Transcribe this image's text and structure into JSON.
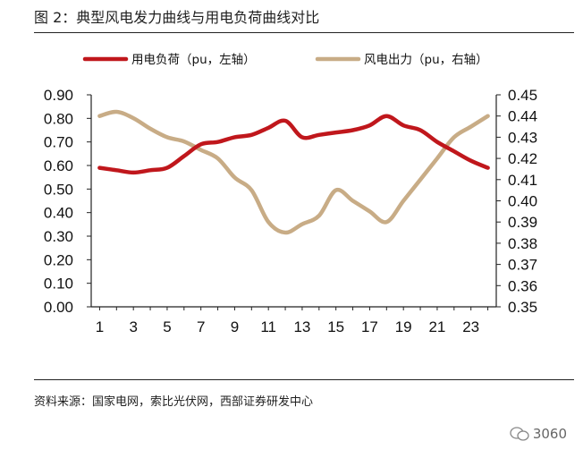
{
  "figure_title": "图 2：典型风电发力曲线与用电负荷曲线对比",
  "source_note": "资料来源：国家电网，索比光伏网，西部证券研发中心",
  "watermark": "3060",
  "colors": {
    "load": "#c0171c",
    "wind": "#c8ac86",
    "axis": "#222222"
  },
  "chart_data": {
    "type": "line",
    "title": "",
    "x": [
      1,
      2,
      3,
      4,
      5,
      6,
      7,
      8,
      9,
      10,
      11,
      12,
      13,
      14,
      15,
      16,
      17,
      18,
      19,
      20,
      21,
      22,
      23,
      24
    ],
    "x_ticks": [
      "1",
      "3",
      "5",
      "7",
      "9",
      "11",
      "13",
      "15",
      "17",
      "19",
      "21",
      "23"
    ],
    "xlim": [
      0.5,
      24.5
    ],
    "y_left": {
      "lim": [
        0,
        0.9
      ],
      "ticks": [
        "0.00",
        "0.10",
        "0.20",
        "0.30",
        "0.40",
        "0.50",
        "0.60",
        "0.70",
        "0.80",
        "0.90"
      ]
    },
    "y_right": {
      "lim": [
        0.35,
        0.45
      ],
      "ticks": [
        "0.35",
        "0.36",
        "0.37",
        "0.38",
        "0.39",
        "0.40",
        "0.41",
        "0.42",
        "0.43",
        "0.44",
        "0.45"
      ]
    },
    "grid": false,
    "legend_position": "top",
    "series": [
      {
        "name": "用电负荷（pu，左轴）",
        "axis": "left",
        "values": [
          0.59,
          0.58,
          0.57,
          0.58,
          0.59,
          0.64,
          0.69,
          0.7,
          0.72,
          0.73,
          0.76,
          0.79,
          0.72,
          0.73,
          0.74,
          0.75,
          0.77,
          0.81,
          0.77,
          0.75,
          0.7,
          0.66,
          0.62,
          0.59
        ]
      },
      {
        "name": "风电出力（pu，右轴）",
        "axis": "right",
        "values": [
          0.44,
          0.442,
          0.439,
          0.434,
          0.43,
          0.428,
          0.424,
          0.42,
          0.411,
          0.405,
          0.39,
          0.385,
          0.389,
          0.393,
          0.405,
          0.4,
          0.395,
          0.39,
          0.4,
          0.41,
          0.42,
          0.43,
          0.435,
          0.44
        ]
      }
    ]
  }
}
